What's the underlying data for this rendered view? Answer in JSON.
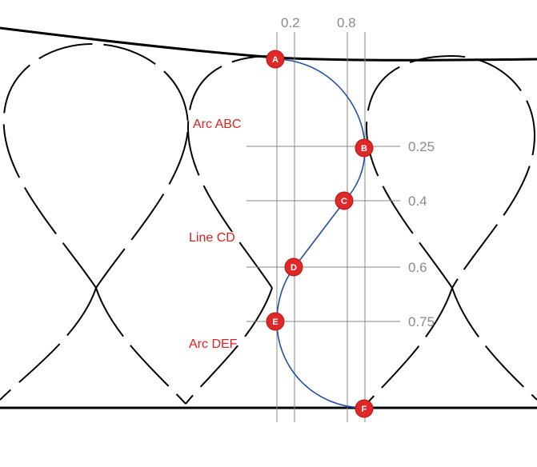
{
  "diagram": {
    "vertical_guides": [
      {
        "id": "v1",
        "label": ""
      },
      {
        "id": "v2",
        "label": "0.2"
      },
      {
        "id": "v3",
        "label": "0.8"
      },
      {
        "id": "v4",
        "label": ""
      }
    ],
    "horizontal_guides": [
      {
        "id": "h1",
        "label": "0.25"
      },
      {
        "id": "h2",
        "label": "0.4"
      },
      {
        "id": "h3",
        "label": "0.6"
      },
      {
        "id": "h4",
        "label": "0.75"
      }
    ],
    "points": [
      {
        "id": "A",
        "label": "A"
      },
      {
        "id": "B",
        "label": "B"
      },
      {
        "id": "C",
        "label": "C"
      },
      {
        "id": "D",
        "label": "D"
      },
      {
        "id": "E",
        "label": "E"
      },
      {
        "id": "F",
        "label": "F"
      }
    ],
    "callouts": [
      {
        "id": "arc-abc",
        "text": "Arc ABC"
      },
      {
        "id": "line-cd",
        "text": "Line CD"
      },
      {
        "id": "arc-def",
        "text": "Arc DEF"
      }
    ],
    "colors": {
      "curve": "#1f4fa8",
      "guide": "#8a8a8a",
      "point": "#e02828",
      "callout": "#e02020",
      "outline": "#000000"
    }
  }
}
